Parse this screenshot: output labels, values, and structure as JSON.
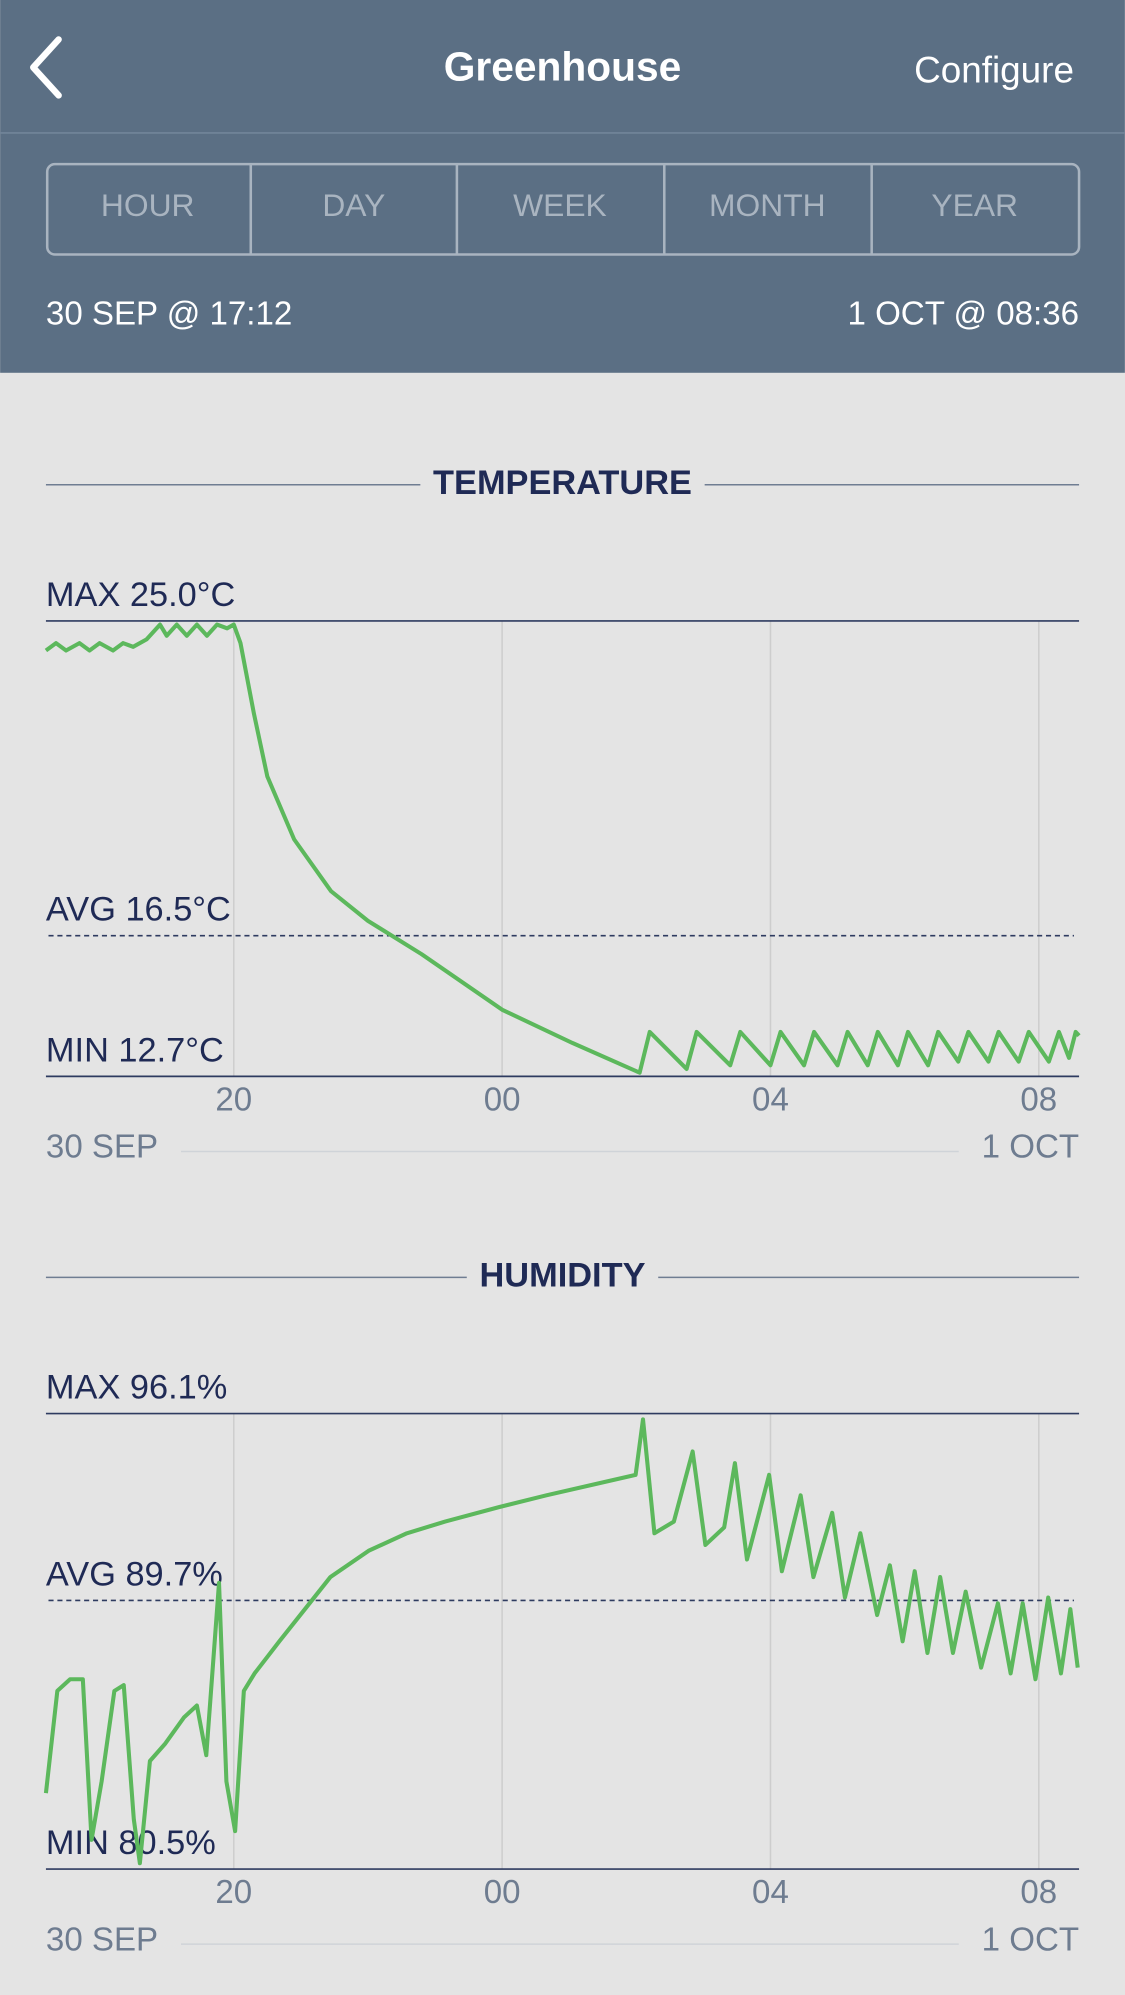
{
  "header": {
    "title": "Greenhouse",
    "action": "Configure"
  },
  "tabs": [
    "HOUR",
    "DAY",
    "WEEK",
    "MONTH",
    "YEAR"
  ],
  "range": {
    "start": "30 SEP @ 17:12",
    "end": "1 OCT @ 08:36"
  },
  "chart_data": [
    {
      "type": "line",
      "title": "TEMPERATURE",
      "color": "#5cb85c",
      "x": [
        17.2,
        17.35,
        17.5,
        17.7,
        17.85,
        18.0,
        18.2,
        18.35,
        18.5,
        18.7,
        18.9,
        19.0,
        19.15,
        19.3,
        19.45,
        19.6,
        19.75,
        19.9,
        20.0,
        20.1,
        20.3,
        20.5,
        20.9,
        21.45,
        22.0,
        22.8,
        24.0,
        25.05,
        26.05,
        26.2,
        26.75,
        26.9,
        27.4,
        27.55,
        28.0,
        28.15,
        28.5,
        28.65,
        29.0,
        29.15,
        29.45,
        29.6,
        29.9,
        30.05,
        30.35,
        30.5,
        30.8,
        30.95,
        31.25,
        31.4,
        31.7,
        31.85,
        32.15,
        32.3,
        32.45,
        32.55,
        32.6
      ],
      "values": [
        24.2,
        24.4,
        24.2,
        24.4,
        24.2,
        24.4,
        24.2,
        24.4,
        24.3,
        24.5,
        24.9,
        24.6,
        24.9,
        24.6,
        24.9,
        24.6,
        24.9,
        24.8,
        24.9,
        24.4,
        22.5,
        20.8,
        19.1,
        17.7,
        16.9,
        16.0,
        14.5,
        13.6,
        12.8,
        13.9,
        12.9,
        13.9,
        13.0,
        13.9,
        13.0,
        13.9,
        13.0,
        13.9,
        13.0,
        13.9,
        13.0,
        13.9,
        13.0,
        13.9,
        13.0,
        13.9,
        13.1,
        13.9,
        13.1,
        13.9,
        13.1,
        13.9,
        13.1,
        13.9,
        13.2,
        13.9,
        13.8
      ],
      "xlim": [
        17.2,
        32.6
      ],
      "xticks": [
        20,
        {
          "value": 24,
          "label": "00"
        },
        {
          "value": 28,
          "label": "04"
        },
        {
          "value": 32,
          "label": "08"
        }
      ],
      "ylim": [
        12.7,
        25.0
      ],
      "yticks": [
        {
          "value": 12.7,
          "label": "MIN 12.7°C"
        },
        {
          "value": 25.0,
          "label": "MAX 25.0°C"
        }
      ],
      "reference_line": {
        "value": 16.5,
        "label": "AVG 16.5°C"
      },
      "date_labels": [
        "30 SEP",
        "1 OCT"
      ],
      "grid": true
    },
    {
      "type": "line",
      "title": "HUMIDITY",
      "color": "#5cb85c",
      "x": [
        17.2,
        17.37,
        17.56,
        17.75,
        17.88,
        18.03,
        18.22,
        18.36,
        18.51,
        18.6,
        18.75,
        18.98,
        19.26,
        19.45,
        19.59,
        19.78,
        19.89,
        20.02,
        20.15,
        20.31,
        20.68,
        21.06,
        21.44,
        22.01,
        22.58,
        23.15,
        23.96,
        24.66,
        25.42,
        25.99,
        26.1,
        26.27,
        26.56,
        26.84,
        27.03,
        27.31,
        27.47,
        27.65,
        27.98,
        28.17,
        28.45,
        28.64,
        28.92,
        29.11,
        29.34,
        29.59,
        29.78,
        29.97,
        30.15,
        30.34,
        30.53,
        30.72,
        30.91,
        31.14,
        31.39,
        31.58,
        31.76,
        31.95,
        32.14,
        32.33,
        32.47,
        32.58
      ],
      "values": [
        83.1,
        86.6,
        87.0,
        87.0,
        81.5,
        83.5,
        86.6,
        86.8,
        82.2,
        80.7,
        84.2,
        84.8,
        85.7,
        86.1,
        84.4,
        90.3,
        83.5,
        81.8,
        86.6,
        87.2,
        88.3,
        89.4,
        90.5,
        91.4,
        92.0,
        92.4,
        92.9,
        93.3,
        93.7,
        94.0,
        95.9,
        92.0,
        92.4,
        94.8,
        91.6,
        92.2,
        94.4,
        91.1,
        94.0,
        90.7,
        93.3,
        90.5,
        92.7,
        89.8,
        92.0,
        89.2,
        90.9,
        88.3,
        90.7,
        87.9,
        90.5,
        87.9,
        90.0,
        87.4,
        89.6,
        87.2,
        89.6,
        87.0,
        89.8,
        87.2,
        89.4,
        87.4
      ],
      "xlim": [
        17.2,
        32.6
      ],
      "xticks": [
        20,
        {
          "value": 24,
          "label": "00"
        },
        {
          "value": 28,
          "label": "04"
        },
        {
          "value": 32,
          "label": "08"
        }
      ],
      "ylim": [
        80.5,
        96.1
      ],
      "yticks": [
        {
          "value": 80.5,
          "label": "MIN 80.5%"
        },
        {
          "value": 96.1,
          "label": "MAX 96.1%"
        }
      ],
      "reference_line": {
        "value": 89.7,
        "label": "AVG 89.7%"
      },
      "date_labels": [
        "30 SEP",
        "1 OCT"
      ],
      "grid": true
    }
  ]
}
